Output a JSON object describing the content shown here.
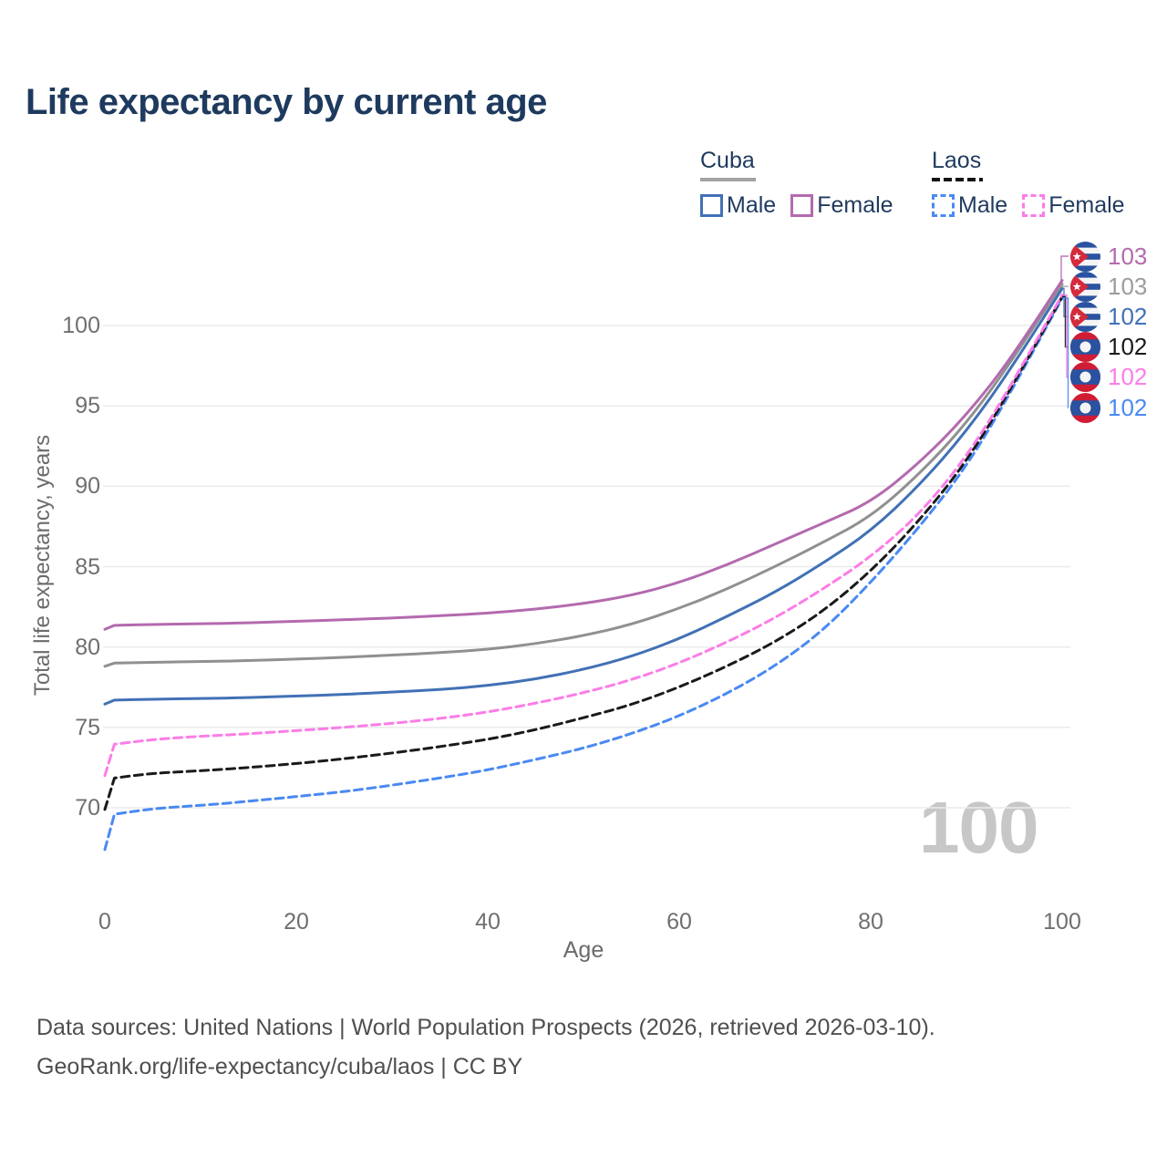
{
  "title": "Life expectancy by current age",
  "watermark": "100",
  "legend": {
    "groups": [
      {
        "label": "Cuba",
        "line_style": "solid",
        "underline_color": "#a3a3a3",
        "items": [
          {
            "label": "Male",
            "color": "#4171b5"
          },
          {
            "label": "Female",
            "color": "#b36aae"
          }
        ]
      },
      {
        "label": "Laos",
        "line_style": "dashed",
        "underline_color": "#141414",
        "items": [
          {
            "label": "Male",
            "color": "#4a89f3"
          },
          {
            "label": "Female",
            "color": "#fb7de7"
          }
        ]
      }
    ]
  },
  "footer": {
    "line1": "Data sources: United Nations | World Population Prospects (2026, retrieved 2026-03-10).",
    "line2": "GeoRank.org/life-expectancy/cuba/laos | CC BY"
  },
  "chart_data": {
    "type": "line",
    "title": "Life expectancy by current age",
    "xlabel": "Age",
    "ylabel": "Total life expectancy, years",
    "xlim": [
      0,
      100
    ],
    "ylim": [
      66.5,
      104
    ],
    "x_ticks": [
      0,
      20,
      40,
      60,
      80,
      100
    ],
    "y_ticks": [
      70,
      75,
      80,
      85,
      90,
      95,
      100
    ],
    "grid": "horizontal",
    "gridline_color": "#ebebeb",
    "x": [
      0,
      1,
      5,
      10,
      15,
      20,
      25,
      30,
      35,
      40,
      45,
      50,
      55,
      60,
      65,
      70,
      75,
      80,
      85,
      90,
      95,
      100
    ],
    "series": [
      {
        "name": "Cuba Female",
        "country": "Cuba",
        "sex": "Female",
        "line_style": "solid",
        "color": "#b36aae",
        "values": [
          81.1,
          81.35,
          81.4,
          81.45,
          81.5,
          81.6,
          81.7,
          81.8,
          81.95,
          82.1,
          82.35,
          82.7,
          83.2,
          84.0,
          85.1,
          86.4,
          87.7,
          89.0,
          91.4,
          94.4,
          98.2,
          102.8
        ]
      },
      {
        "name": "Cuba Both sexes",
        "country": "Cuba",
        "sex": "Both",
        "line_style": "solid",
        "color": "#909090",
        "values": [
          78.8,
          79.0,
          79.05,
          79.1,
          79.15,
          79.25,
          79.35,
          79.5,
          79.65,
          79.85,
          80.2,
          80.7,
          81.4,
          82.4,
          83.6,
          85.0,
          86.5,
          88.1,
          90.7,
          93.9,
          98.0,
          102.6
        ]
      },
      {
        "name": "Cuba Male",
        "country": "Cuba",
        "sex": "Male",
        "line_style": "solid",
        "color": "#4171b5",
        "values": [
          76.45,
          76.7,
          76.75,
          76.8,
          76.85,
          76.95,
          77.05,
          77.2,
          77.35,
          77.6,
          78.0,
          78.6,
          79.4,
          80.5,
          81.9,
          83.4,
          85.2,
          87.2,
          90.0,
          93.4,
          97.6,
          102.3
        ]
      },
      {
        "name": "Laos Both sexes",
        "country": "Laos",
        "sex": "Both",
        "line_style": "dashed",
        "color": "#1a1a1a",
        "values": [
          69.9,
          71.85,
          72.15,
          72.3,
          72.5,
          72.75,
          73.05,
          73.4,
          73.8,
          74.25,
          74.85,
          75.6,
          76.4,
          77.5,
          78.8,
          80.3,
          82.2,
          84.7,
          87.8,
          91.5,
          96.4,
          101.8
        ]
      },
      {
        "name": "Laos Female",
        "country": "Laos",
        "sex": "Female",
        "line_style": "dashed",
        "color": "#fb7de7",
        "values": [
          72.0,
          73.95,
          74.25,
          74.45,
          74.6,
          74.8,
          75.0,
          75.25,
          75.55,
          75.95,
          76.5,
          77.15,
          77.95,
          79.0,
          80.3,
          81.8,
          83.6,
          85.6,
          88.2,
          91.8,
          96.6,
          101.9
        ]
      },
      {
        "name": "Laos Male",
        "country": "Laos",
        "sex": "Male",
        "line_style": "dashed",
        "color": "#4a89f3",
        "values": [
          67.4,
          69.6,
          69.95,
          70.15,
          70.4,
          70.7,
          71.0,
          71.4,
          71.85,
          72.35,
          73.0,
          73.7,
          74.6,
          75.7,
          77.1,
          78.8,
          81.0,
          84.0,
          87.4,
          91.2,
          96.2,
          101.7
        ]
      }
    ],
    "end_labels": [
      {
        "value": "103",
        "flag": "cuba",
        "series": "Cuba Female",
        "color": "#b36aae"
      },
      {
        "value": "103",
        "flag": "cuba",
        "series": "Cuba Both sexes",
        "color": "#9c9c9c"
      },
      {
        "value": "102",
        "flag": "cuba",
        "series": "Cuba Male",
        "color": "#4171b5"
      },
      {
        "value": "102",
        "flag": "laos",
        "series": "Laos Both sexes",
        "color": "#1a1a1a"
      },
      {
        "value": "102",
        "flag": "laos",
        "series": "Laos Female",
        "color": "#fb7de7"
      },
      {
        "value": "102",
        "flag": "laos",
        "series": "Laos Male",
        "color": "#4a89f3"
      }
    ]
  }
}
